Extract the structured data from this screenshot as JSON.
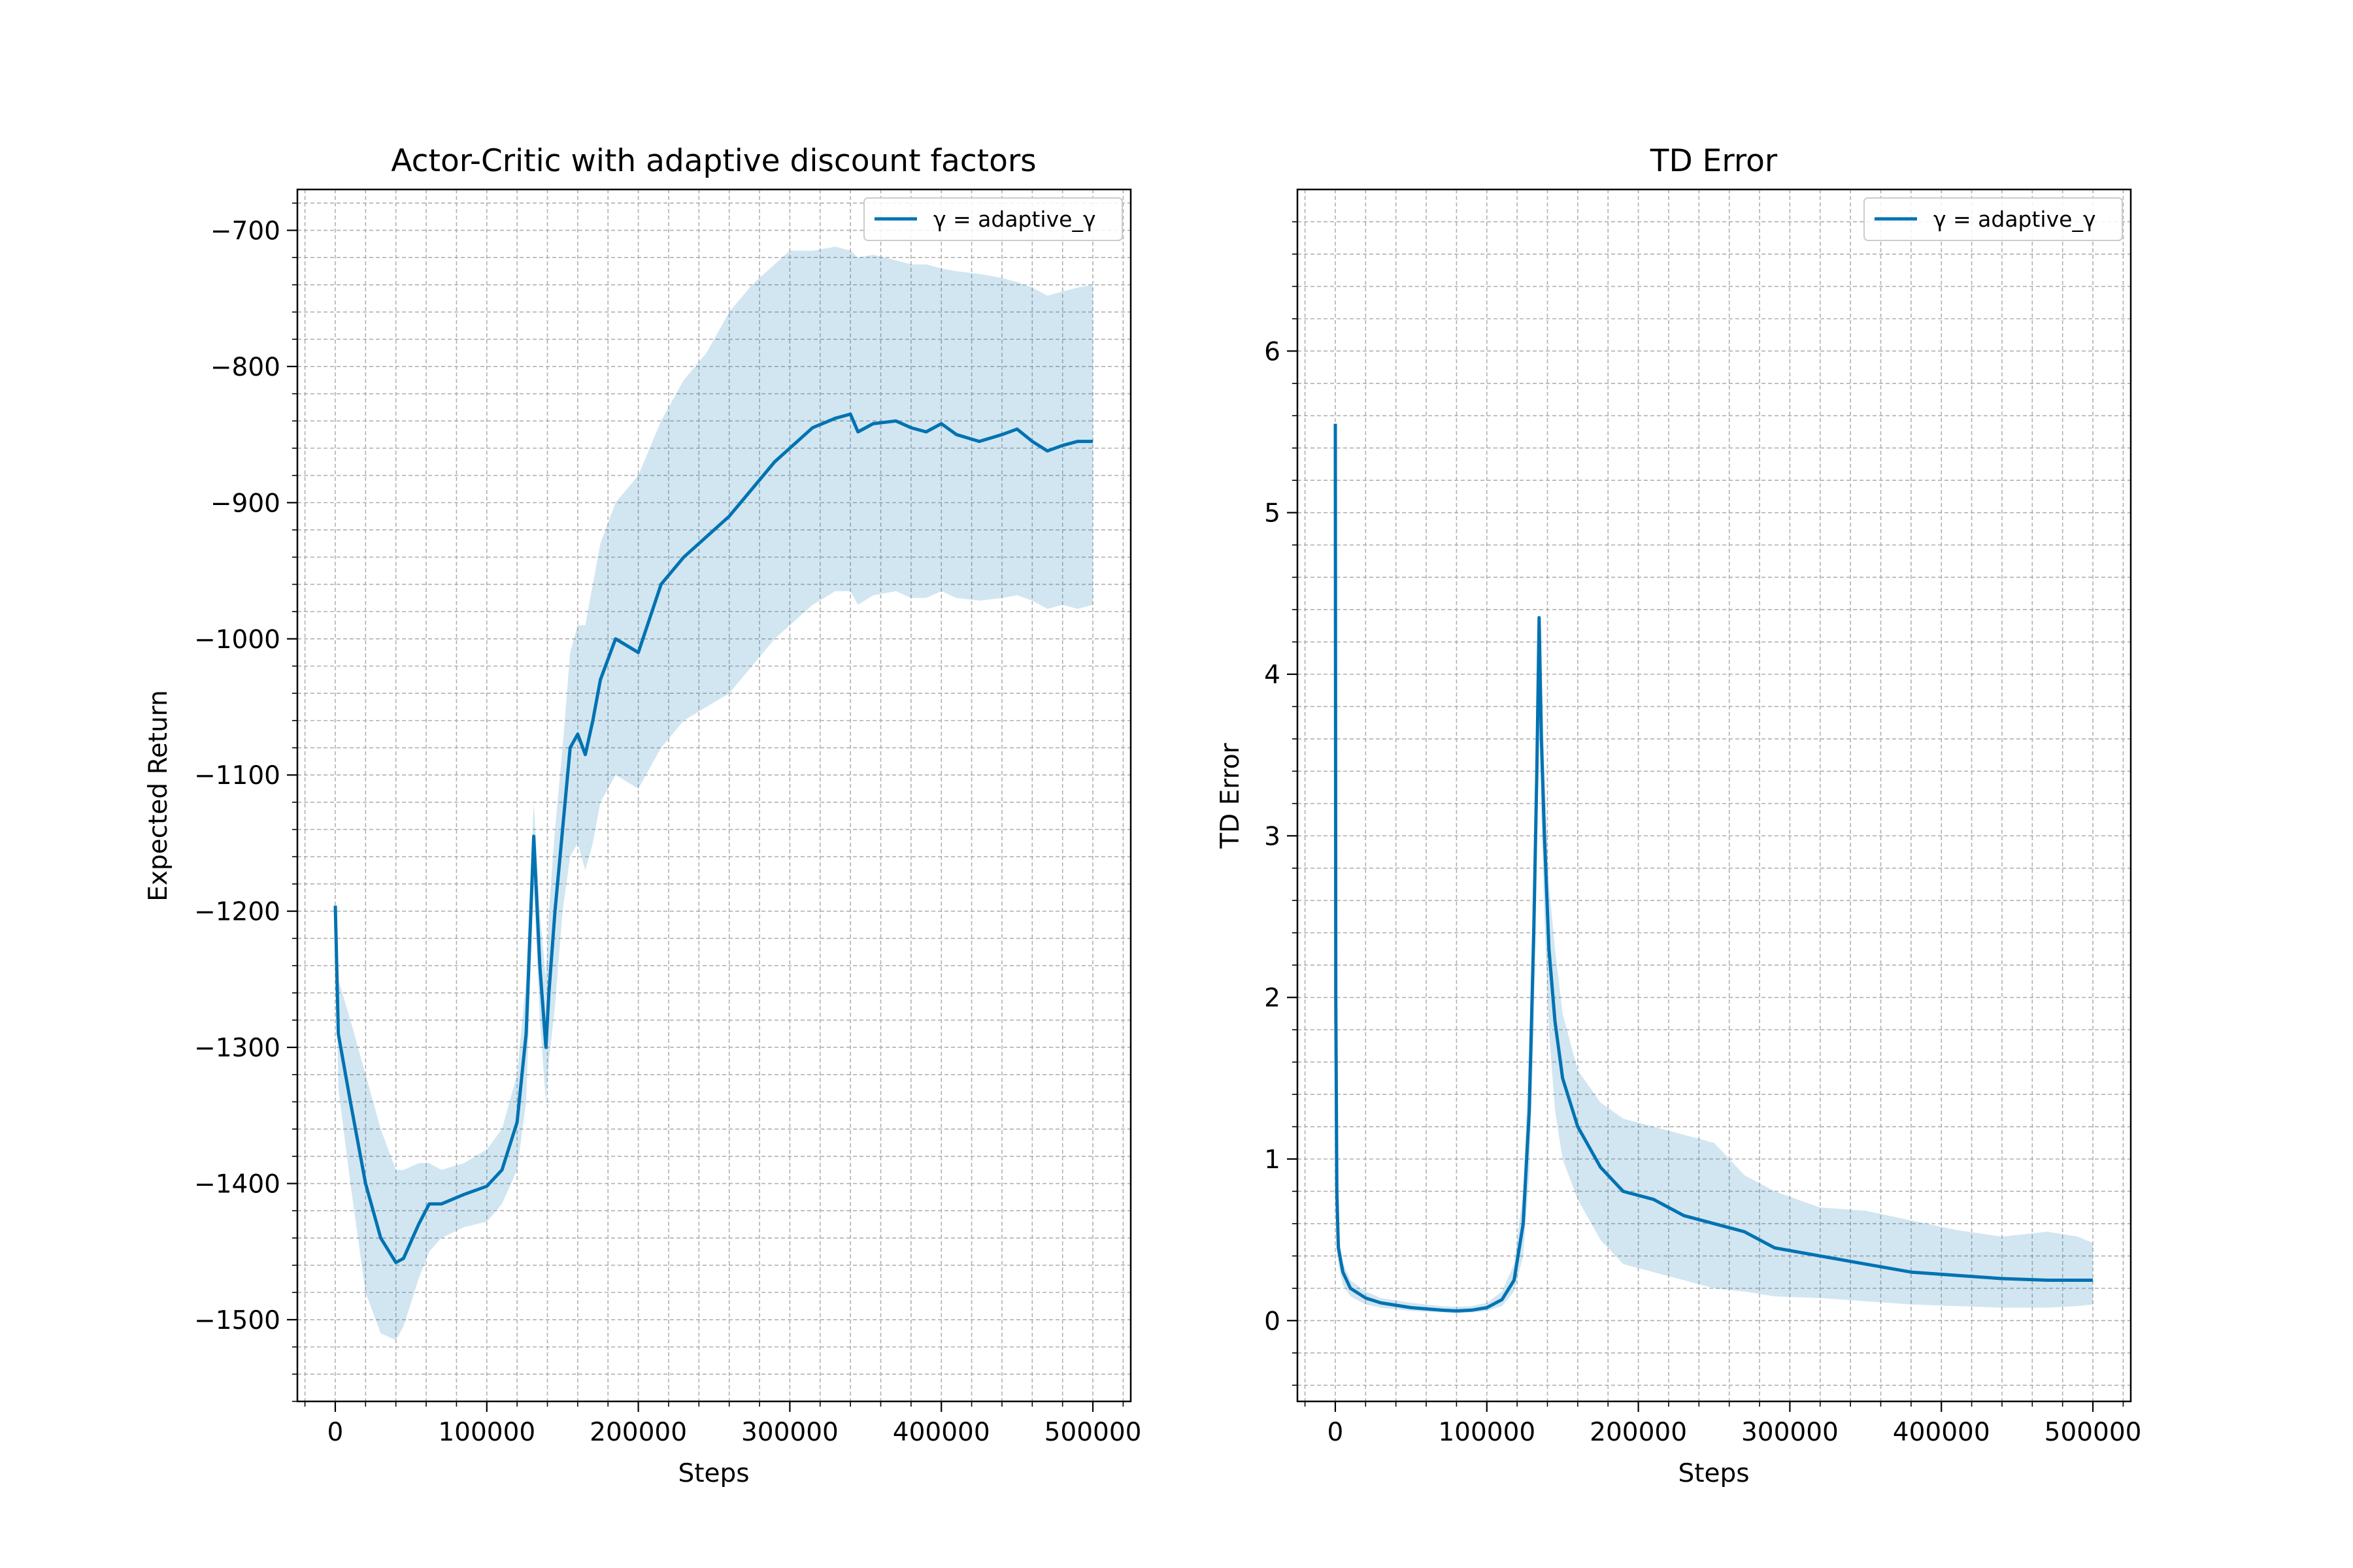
{
  "colors": {
    "line": "#0072b2",
    "band": "#0072b2",
    "grid": "#b0b0b0"
  },
  "chart_data": [
    {
      "type": "line",
      "title": "Actor-Critic with adaptive discount factors",
      "xlabel": "Steps",
      "ylabel": "Expected Return",
      "xlim": [
        -25000,
        525000
      ],
      "ylim": [
        -1560,
        -670
      ],
      "xticks": [
        0,
        100000,
        200000,
        300000,
        400000,
        500000
      ],
      "xtick_labels": [
        "0",
        "100000",
        "200000",
        "300000",
        "400000",
        "500000"
      ],
      "yticks": [
        -1500,
        -1400,
        -1300,
        -1200,
        -1100,
        -1000,
        -900,
        -800,
        -700
      ],
      "ytick_labels": [
        "−1500",
        "−1400",
        "−1300",
        "−1200",
        "−1100",
        "−1000",
        "−900",
        "−800",
        "−700"
      ],
      "grid": true,
      "legend_position": "top-right",
      "series": [
        {
          "name": "γ = adaptive_γ",
          "x": [
            0,
            2000,
            10000,
            20000,
            30000,
            40000,
            45000,
            55000,
            62000,
            70000,
            85000,
            100000,
            110000,
            120000,
            126000,
            131000,
            135000,
            139000,
            141000,
            145000,
            150000,
            155000,
            160000,
            165000,
            170000,
            175000,
            185000,
            200000,
            215000,
            230000,
            245000,
            260000,
            275000,
            290000,
            300000,
            315000,
            330000,
            340000,
            345000,
            355000,
            370000,
            380000,
            390000,
            400000,
            410000,
            425000,
            440000,
            450000,
            460000,
            470000,
            480000,
            490000,
            500000
          ],
          "y": [
            -1196,
            -1290,
            -1340,
            -1400,
            -1440,
            -1458,
            -1455,
            -1430,
            -1415,
            -1415,
            -1408,
            -1402,
            -1390,
            -1355,
            -1290,
            -1145,
            -1240,
            -1300,
            -1260,
            -1200,
            -1140,
            -1080,
            -1070,
            -1085,
            -1060,
            -1030,
            -1000,
            -1010,
            -960,
            -940,
            -925,
            -910,
            -890,
            -870,
            -860,
            -845,
            -838,
            -835,
            -848,
            -842,
            -840,
            -845,
            -848,
            -842,
            -850,
            -855,
            -850,
            -846,
            -855,
            -862,
            -858,
            -855,
            -855
          ],
          "upper": [
            -1196,
            -1250,
            -1280,
            -1320,
            -1360,
            -1390,
            -1390,
            -1385,
            -1385,
            -1390,
            -1385,
            -1375,
            -1360,
            -1320,
            -1250,
            -1120,
            -1200,
            -1250,
            -1200,
            -1140,
            -1080,
            -1010,
            -990,
            -990,
            -960,
            -930,
            -900,
            -880,
            -840,
            -810,
            -790,
            -760,
            -740,
            -725,
            -715,
            -715,
            -712,
            -715,
            -720,
            -718,
            -722,
            -725,
            -725,
            -728,
            -730,
            -732,
            -735,
            -738,
            -742,
            -748,
            -745,
            -742,
            -740
          ],
          "lower": [
            -1196,
            -1330,
            -1400,
            -1480,
            -1510,
            -1515,
            -1505,
            -1470,
            -1450,
            -1440,
            -1432,
            -1428,
            -1415,
            -1390,
            -1340,
            -1180,
            -1280,
            -1340,
            -1310,
            -1270,
            -1200,
            -1160,
            -1150,
            -1170,
            -1150,
            -1120,
            -1100,
            -1110,
            -1080,
            -1060,
            -1050,
            -1040,
            -1020,
            -1000,
            -990,
            -975,
            -965,
            -965,
            -975,
            -968,
            -965,
            -970,
            -970,
            -965,
            -970,
            -972,
            -970,
            -968,
            -972,
            -978,
            -975,
            -978,
            -975
          ]
        }
      ]
    },
    {
      "type": "line",
      "title": "TD Error",
      "xlabel": "Steps",
      "ylabel": "TD Error",
      "xlim": [
        -25000,
        525000
      ],
      "ylim": [
        -0.5,
        7.0
      ],
      "xticks": [
        0,
        100000,
        200000,
        300000,
        400000,
        500000
      ],
      "xtick_labels": [
        "0",
        "100000",
        "200000",
        "300000",
        "400000",
        "500000"
      ],
      "yticks": [
        0,
        1,
        2,
        3,
        4,
        5,
        6
      ],
      "ytick_labels": [
        "0",
        "1",
        "2",
        "3",
        "4",
        "5",
        "6"
      ],
      "grid": true,
      "legend_position": "top-right",
      "series": [
        {
          "name": "γ = adaptive_γ",
          "x": [
            0,
            300,
            1000,
            2000,
            5000,
            10000,
            20000,
            30000,
            50000,
            70000,
            80000,
            90000,
            100000,
            110000,
            118000,
            124000,
            128000,
            131000,
            133000,
            134500,
            136000,
            138000,
            141000,
            145000,
            150000,
            160000,
            175000,
            190000,
            210000,
            230000,
            250000,
            270000,
            290000,
            320000,
            350000,
            380000,
            410000,
            440000,
            470000,
            490000,
            500000
          ],
          "y": [
            5.55,
            2.0,
            0.8,
            0.45,
            0.3,
            0.2,
            0.14,
            0.11,
            0.08,
            0.065,
            0.06,
            0.065,
            0.08,
            0.13,
            0.25,
            0.6,
            1.3,
            2.4,
            3.4,
            4.35,
            3.6,
            3.0,
            2.3,
            1.85,
            1.5,
            1.2,
            0.95,
            0.8,
            0.75,
            0.65,
            0.6,
            0.55,
            0.45,
            0.4,
            0.35,
            0.3,
            0.28,
            0.26,
            0.25,
            0.25,
            0.25
          ],
          "upper": [
            5.55,
            2.3,
            0.95,
            0.55,
            0.36,
            0.25,
            0.18,
            0.14,
            0.11,
            0.09,
            0.085,
            0.09,
            0.11,
            0.18,
            0.35,
            0.8,
            1.7,
            2.9,
            3.9,
            4.35,
            4.1,
            3.4,
            2.7,
            2.3,
            1.9,
            1.55,
            1.35,
            1.25,
            1.2,
            1.15,
            1.1,
            0.9,
            0.8,
            0.7,
            0.68,
            0.62,
            0.56,
            0.52,
            0.55,
            0.52,
            0.48
          ],
          "lower": [
            5.55,
            1.7,
            0.65,
            0.35,
            0.22,
            0.15,
            0.1,
            0.08,
            0.06,
            0.05,
            0.045,
            0.05,
            0.06,
            0.09,
            0.18,
            0.4,
            0.9,
            1.8,
            2.9,
            4.2,
            3.1,
            2.5,
            1.8,
            1.3,
            1.0,
            0.75,
            0.5,
            0.35,
            0.3,
            0.25,
            0.2,
            0.18,
            0.15,
            0.14,
            0.12,
            0.1,
            0.09,
            0.08,
            0.08,
            0.09,
            0.1
          ]
        }
      ]
    }
  ]
}
